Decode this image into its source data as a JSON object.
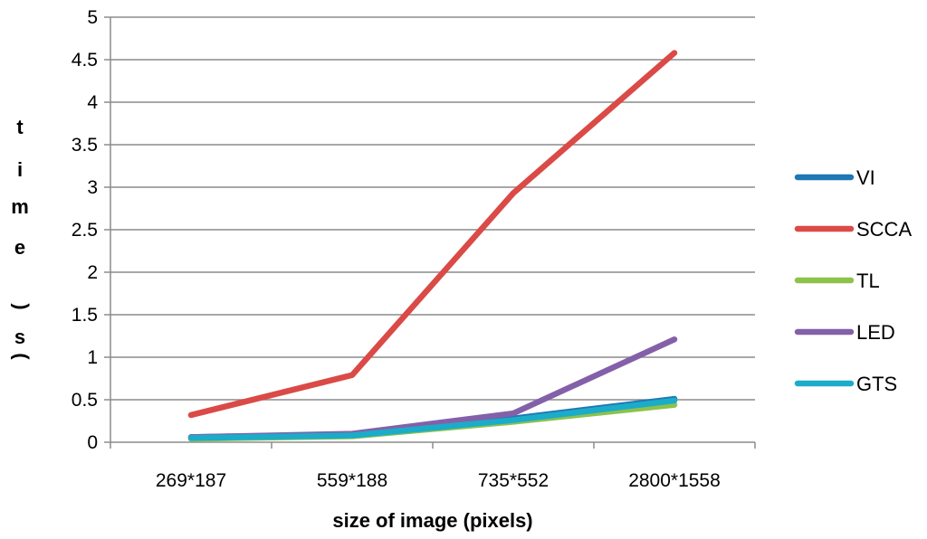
{
  "chart_data": {
    "type": "line",
    "title": "",
    "xlabel": "size of image (pixels)",
    "ylabel": "time(s)",
    "ylabel_chars": [
      "t",
      "i",
      "m",
      "e",
      "(",
      "s",
      ")"
    ],
    "categories": [
      "269*187",
      "559*188",
      "735*552",
      "2800*1558"
    ],
    "ylim": [
      0,
      5
    ],
    "yticks": [
      0,
      0.5,
      1,
      1.5,
      2,
      2.5,
      3,
      3.5,
      4,
      4.5,
      5
    ],
    "ytick_labels": [
      "0",
      "0.5",
      "1",
      "1.5",
      "2",
      "2.5",
      "3",
      "3.5",
      "4",
      "4.5",
      "5"
    ],
    "grid": true,
    "legend_position": "right",
    "series": [
      {
        "name": "VI",
        "color": "#1F77B4",
        "values": [
          0.06,
          0.09,
          0.28,
          0.51
        ]
      },
      {
        "name": "SCCA",
        "color": "#DA4A47",
        "values": [
          0.32,
          0.79,
          2.93,
          4.58
        ]
      },
      {
        "name": "TL",
        "color": "#8DC24D",
        "values": [
          0.04,
          0.07,
          0.24,
          0.44
        ]
      },
      {
        "name": "LED",
        "color": "#8460A9",
        "values": [
          0.06,
          0.1,
          0.34,
          1.21
        ]
      },
      {
        "name": "GTS",
        "color": "#1BACC9",
        "values": [
          0.05,
          0.08,
          0.26,
          0.49
        ]
      }
    ]
  }
}
